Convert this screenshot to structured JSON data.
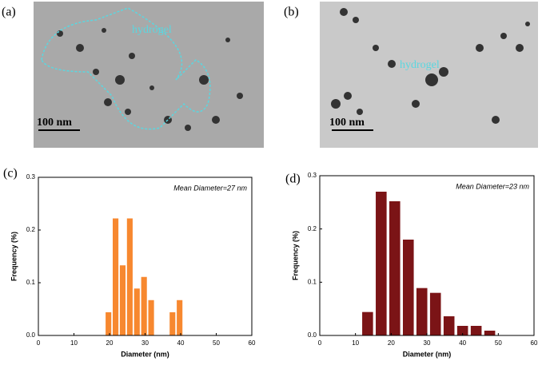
{
  "images": [
    {
      "label": "(a)",
      "annotation": "hydrogel",
      "scale_bar": "100 nm"
    },
    {
      "label": "(b)",
      "annotation": "hydrogel",
      "scale_bar": "100 nm"
    }
  ],
  "chart_data": [
    {
      "type": "histogram",
      "panel_label": "(c)",
      "annotation": "Mean Diameter=27 nm",
      "x_label": "Diameter (nm)",
      "y_label": "Frequency (%)",
      "color": "#f7882f",
      "bins": [
        18.7,
        20.7,
        22.7,
        24.7,
        26.7,
        28.7,
        30.7,
        32.7,
        34.7,
        36.7,
        38.7,
        40.7
      ],
      "values": [
        0.044,
        0.222,
        0.133,
        0.222,
        0.089,
        0.111,
        0.067,
        0,
        0,
        0.044,
        0.067
      ],
      "xlim": [
        0,
        60
      ],
      "xticks": [
        0,
        10,
        20,
        30,
        40,
        50,
        60
      ],
      "ylim": [
        0,
        0.3
      ],
      "yticks": [
        {
          "value": 0,
          "label": "0.0"
        },
        0.1,
        0.2,
        0.3
      ]
    },
    {
      "type": "histogram",
      "panel_label": "(d)",
      "annotation": "Mean Diameter=23 nm",
      "x_label": "Diameter (nm)",
      "y_label": "Frequency (%)",
      "color": "#7b1416",
      "bins": [
        11.5,
        15.3,
        19.1,
        22.9,
        26.7,
        30.5,
        34.3,
        38.1,
        41.9,
        45.7,
        49.5
      ],
      "values": [
        0.044,
        0.27,
        0.252,
        0.18,
        0.089,
        0.08,
        0.036,
        0.018,
        0.018,
        0.009
      ],
      "xlim": [
        0,
        60
      ],
      "xticks": [
        0,
        10,
        20,
        30,
        40,
        50,
        60
      ],
      "ylim": [
        0,
        0.3
      ],
      "yticks": [
        {
          "value": 0,
          "label": "0.0"
        },
        0.1,
        0.2,
        0.3
      ]
    }
  ]
}
